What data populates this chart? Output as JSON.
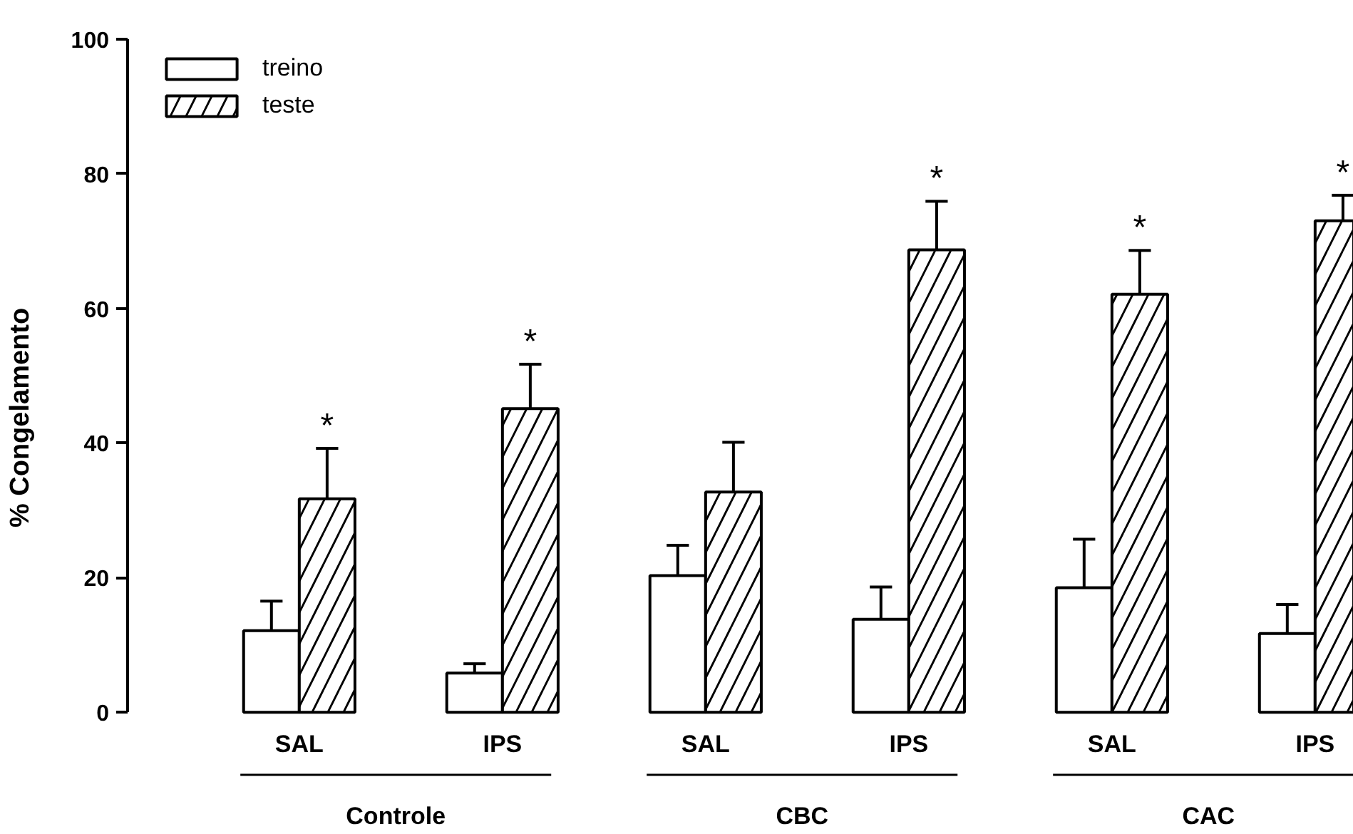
{
  "chart_data": {
    "type": "bar",
    "ylabel": "% Congelamento",
    "categories": [
      "SAL",
      "IPS",
      "SAL",
      "IPS",
      "SAL",
      "IPS"
    ],
    "annotations": [
      "Controle",
      "CBC",
      "CAC"
    ],
    "series": [
      {
        "name": "treino",
        "color": "#ffffff",
        "values": [
          12.1,
          5.8,
          20.3,
          13.8,
          18.5,
          11.7
        ],
        "errors": [
          [
            12.1,
            16.5
          ],
          [
            5.8,
            7.2
          ],
          [
            20.3,
            24.8
          ],
          [
            13.8,
            18.6
          ],
          [
            18.5,
            25.7
          ],
          [
            11.7,
            16.0
          ]
        ]
      },
      {
        "name": "teste",
        "color": "#ffffff",
        "values": [
          31.7,
          45.1,
          32.7,
          68.7,
          62.1,
          73.0
        ],
        "errors": [
          [
            31.7,
            39.2
          ],
          [
            45.1,
            51.7
          ],
          [
            32.7,
            40.1
          ],
          [
            68.7,
            75.9
          ],
          [
            62.1,
            68.6
          ],
          [
            73.0,
            76.8
          ]
        ],
        "value_labels": [
          "*",
          "*",
          null,
          "*",
          "*",
          "*"
        ]
      }
    ],
    "ylim": [
      0,
      100
    ],
    "yticks": [
      0,
      20,
      40,
      60,
      80,
      100
    ],
    "grid": false,
    "legend": "top left"
  }
}
